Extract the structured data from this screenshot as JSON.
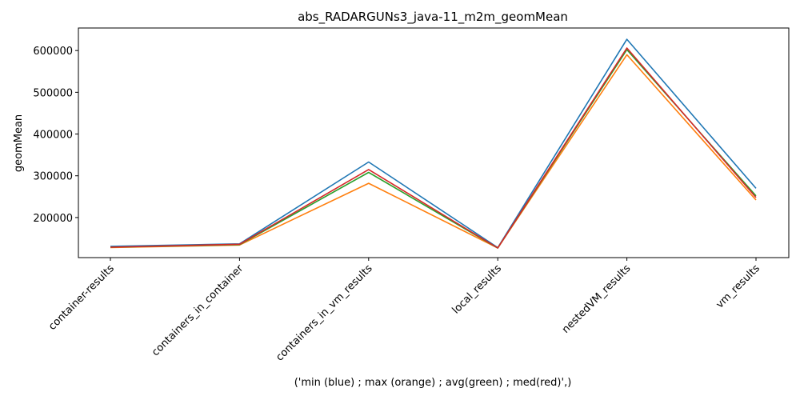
{
  "chart_data": {
    "type": "line",
    "title": "abs_RADARGUNs3_java-11_m2m_geomMean",
    "xlabel": "('min (blue) ; max (orange) ; avg(green) ; med(red)',)",
    "ylabel": "geomMean",
    "categories": [
      "container-results",
      "containers_in_container",
      "containers_in_vm_results",
      "local_results",
      "nestedVM_results",
      "vm_results"
    ],
    "ylim": [
      104000,
      654000
    ],
    "yticks": [
      200000,
      300000,
      400000,
      500000,
      600000
    ],
    "grid": false,
    "series": [
      {
        "color": "#1f77b4",
        "values": [
          131000,
          137000,
          333000,
          128000,
          627000,
          270000
        ]
      },
      {
        "color": "#ff7f0e",
        "values": [
          128000,
          134000,
          282000,
          127000,
          590000,
          242000
        ]
      },
      {
        "color": "#2ca02c",
        "values": [
          129000,
          135000,
          308000,
          127000,
          602000,
          252000
        ]
      },
      {
        "color": "#d62728",
        "values": [
          129000,
          136000,
          315000,
          127000,
          606000,
          248000
        ]
      }
    ]
  }
}
